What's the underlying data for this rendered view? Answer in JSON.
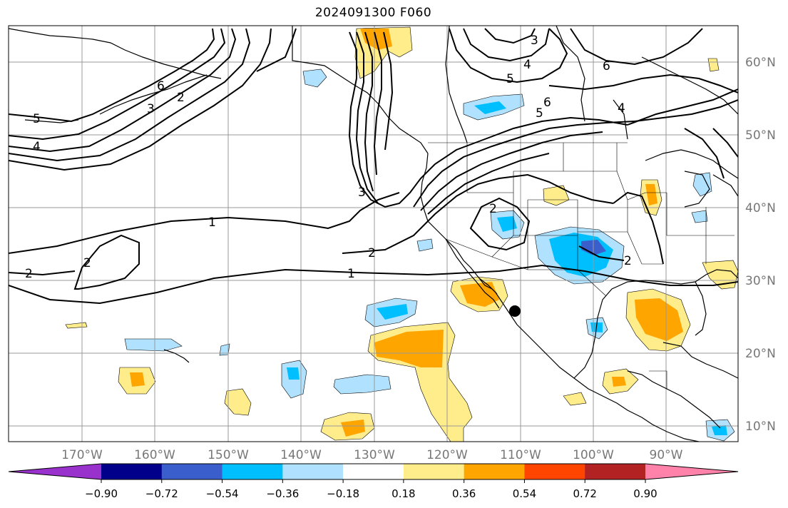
{
  "title": "2024091300 F060",
  "lon_labels": [
    "170°W",
    "160°W",
    "150°W",
    "140°W",
    "130°W",
    "120°W",
    "110°W",
    "100°W",
    "90°W"
  ],
  "lat_labels": [
    "60°N",
    "50°N",
    "40°N",
    "30°N",
    "20°N",
    "10°N"
  ],
  "colorbar": {
    "ticks": [
      "−0.90",
      "−0.72",
      "−0.54",
      "−0.36",
      "−0.18",
      "0.18",
      "0.36",
      "0.54",
      "0.72",
      "0.90"
    ],
    "colors": [
      "#9932CC",
      "#00008B",
      "#3A5FCD",
      "#00BFFF",
      "#B0E2FF",
      "#FFFFFF",
      "#FFEC8B",
      "#FFA500",
      "#FF4500",
      "#B22222",
      "#FF82AB"
    ]
  },
  "contour_labels": [
    "1",
    "1",
    "2",
    "2",
    "2",
    "2",
    "3",
    "3",
    "3",
    "4",
    "4",
    "4",
    "5",
    "5",
    "5",
    "6",
    "6",
    "6",
    "2",
    "2"
  ]
}
